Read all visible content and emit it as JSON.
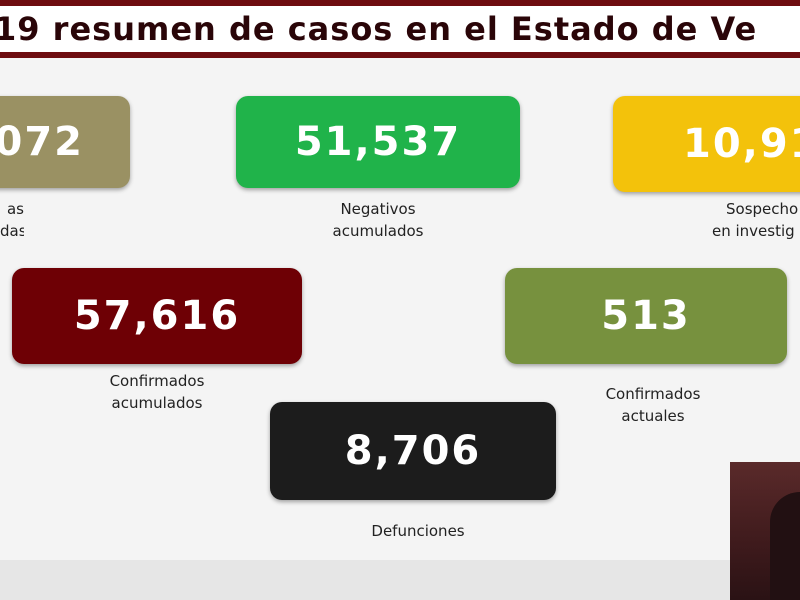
{
  "header": {
    "title": "19 resumen de casos en el Estado de Ve"
  },
  "colors": {
    "banner": "#6e0d10",
    "olive_tan": "#9a9163",
    "green": "#20b34a",
    "yellow": "#f3c20b",
    "maroon": "#6e0005",
    "olive_green": "#77913e",
    "black": "#1c1c1c"
  },
  "cards": {
    "partial_left": {
      "value": "072",
      "label_line1": "as",
      "label_line2": "das"
    },
    "negativos": {
      "value": "51,537",
      "label_line1": "Negativos",
      "label_line2": "acumulados"
    },
    "sospechosos": {
      "value": "10,91",
      "label_line1": "Sospecho",
      "label_line2": "en investig"
    },
    "confirmados_acumulados": {
      "value": "57,616",
      "label_line1": "Confirmados",
      "label_line2": "acumulados"
    },
    "confirmados_actuales": {
      "value": "513",
      "label_line1": "Confirmados",
      "label_line2": "actuales"
    },
    "defunciones": {
      "value": "8,706",
      "label_line1": "Defunciones"
    }
  }
}
